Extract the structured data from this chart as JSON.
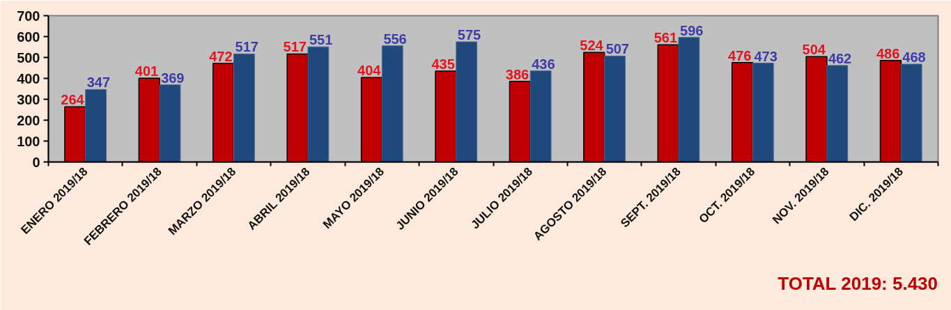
{
  "chart_data": {
    "type": "bar",
    "categories": [
      "ENERO 2019/18",
      "FEBRERO 2019/18",
      "MARZO 2019/18",
      "ABRIL 2019/18",
      "MAYO 2019/18",
      "JUNIO 2019/18",
      "JULIO 2019/18",
      "AGOSTO 2019/18",
      "SEPT. 2019/18",
      "OCT. 2019/18",
      "NOV. 2019/18",
      "DIC. 2019/18"
    ],
    "series": [
      {
        "color": "#c00000",
        "values": [
          264,
          401,
          472,
          517,
          404,
          435,
          386,
          524,
          561,
          476,
          504,
          486
        ]
      },
      {
        "color": "#1f497d",
        "values": [
          347,
          369,
          517,
          551,
          556,
          575,
          436,
          507,
          596,
          473,
          462,
          468
        ]
      }
    ],
    "ylim": [
      0,
      700
    ],
    "yticks": [
      0,
      100,
      200,
      300,
      400,
      500,
      600,
      700
    ],
    "grid": false,
    "data_labels": true,
    "annotations": [
      "TOTAL 2019: 5.430"
    ]
  }
}
